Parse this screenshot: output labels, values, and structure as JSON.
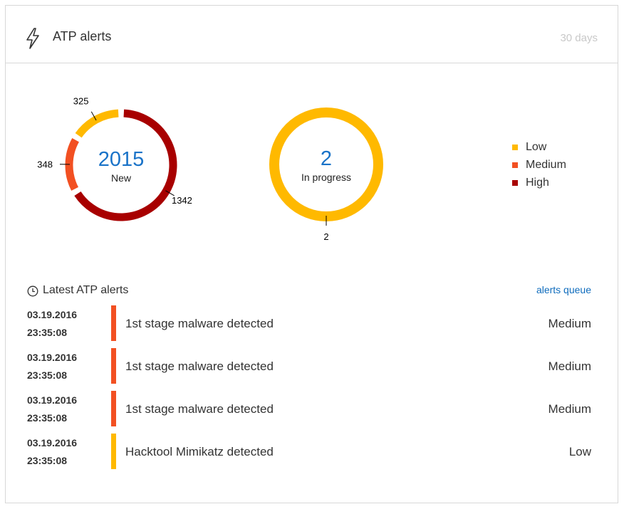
{
  "header": {
    "title": "ATP alerts",
    "period": "30 days",
    "icon": "lightning-bolt-icon"
  },
  "colors": {
    "Low": "#ffb900",
    "Medium": "#f25022",
    "High": "#a80000",
    "link": "#0f6cbd"
  },
  "chart_data": [
    {
      "type": "pie",
      "variant": "donut",
      "center_value": "2015",
      "center_label": "New",
      "slices": [
        {
          "category": "High",
          "value": 1342
        },
        {
          "category": "Medium",
          "value": 348
        },
        {
          "category": "Low",
          "value": 325
        }
      ]
    },
    {
      "type": "pie",
      "variant": "donut",
      "center_value": "2",
      "center_label": "In progress",
      "slices": [
        {
          "category": "Low",
          "value": 2
        }
      ]
    }
  ],
  "legend": {
    "items": [
      "Low",
      "Medium",
      "High"
    ],
    "placement": "right"
  },
  "latest": {
    "icon": "clock-icon",
    "title": "Latest ATP alerts",
    "link_label": "alerts queue",
    "rows": [
      {
        "date": "03.19.2016",
        "time": "23:35:08",
        "title": "1st stage malware detected",
        "severity": "Medium"
      },
      {
        "date": "03.19.2016",
        "time": "23:35:08",
        "title": "1st stage malware detected",
        "severity": "Medium"
      },
      {
        "date": "03.19.2016",
        "time": "23:35:08",
        "title": "1st stage malware detected",
        "severity": "Medium"
      },
      {
        "date": "03.19.2016",
        "time": "23:35:08",
        "title": "Hacktool Mimikatz detected",
        "severity": "Low"
      }
    ]
  }
}
